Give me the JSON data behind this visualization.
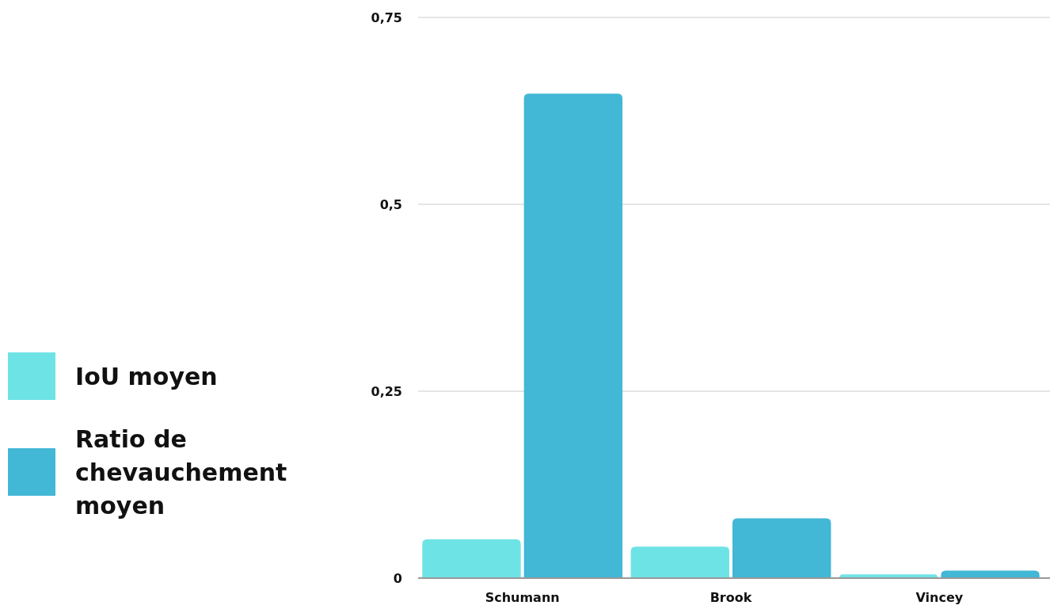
{
  "chart_data": {
    "type": "bar",
    "categories": [
      "Schumann",
      "Brook",
      "Vincey"
    ],
    "series": [
      {
        "name": "IoU moyen",
        "color": "#6ee3e6",
        "values": [
          0.052,
          0.042,
          0.005
        ]
      },
      {
        "name": "Ratio de chevauchement moyen",
        "color": "#42b7d6",
        "values": [
          0.648,
          0.08,
          0.01
        ]
      }
    ],
    "ylim": [
      0,
      0.75
    ],
    "yticks": [
      {
        "value": 0,
        "label": "0"
      },
      {
        "value": 0.25,
        "label": "0,25"
      },
      {
        "value": 0.5,
        "label": "0,5"
      },
      {
        "value": 0.75,
        "label": "0,75"
      }
    ],
    "grid": "y",
    "legend": "left"
  }
}
